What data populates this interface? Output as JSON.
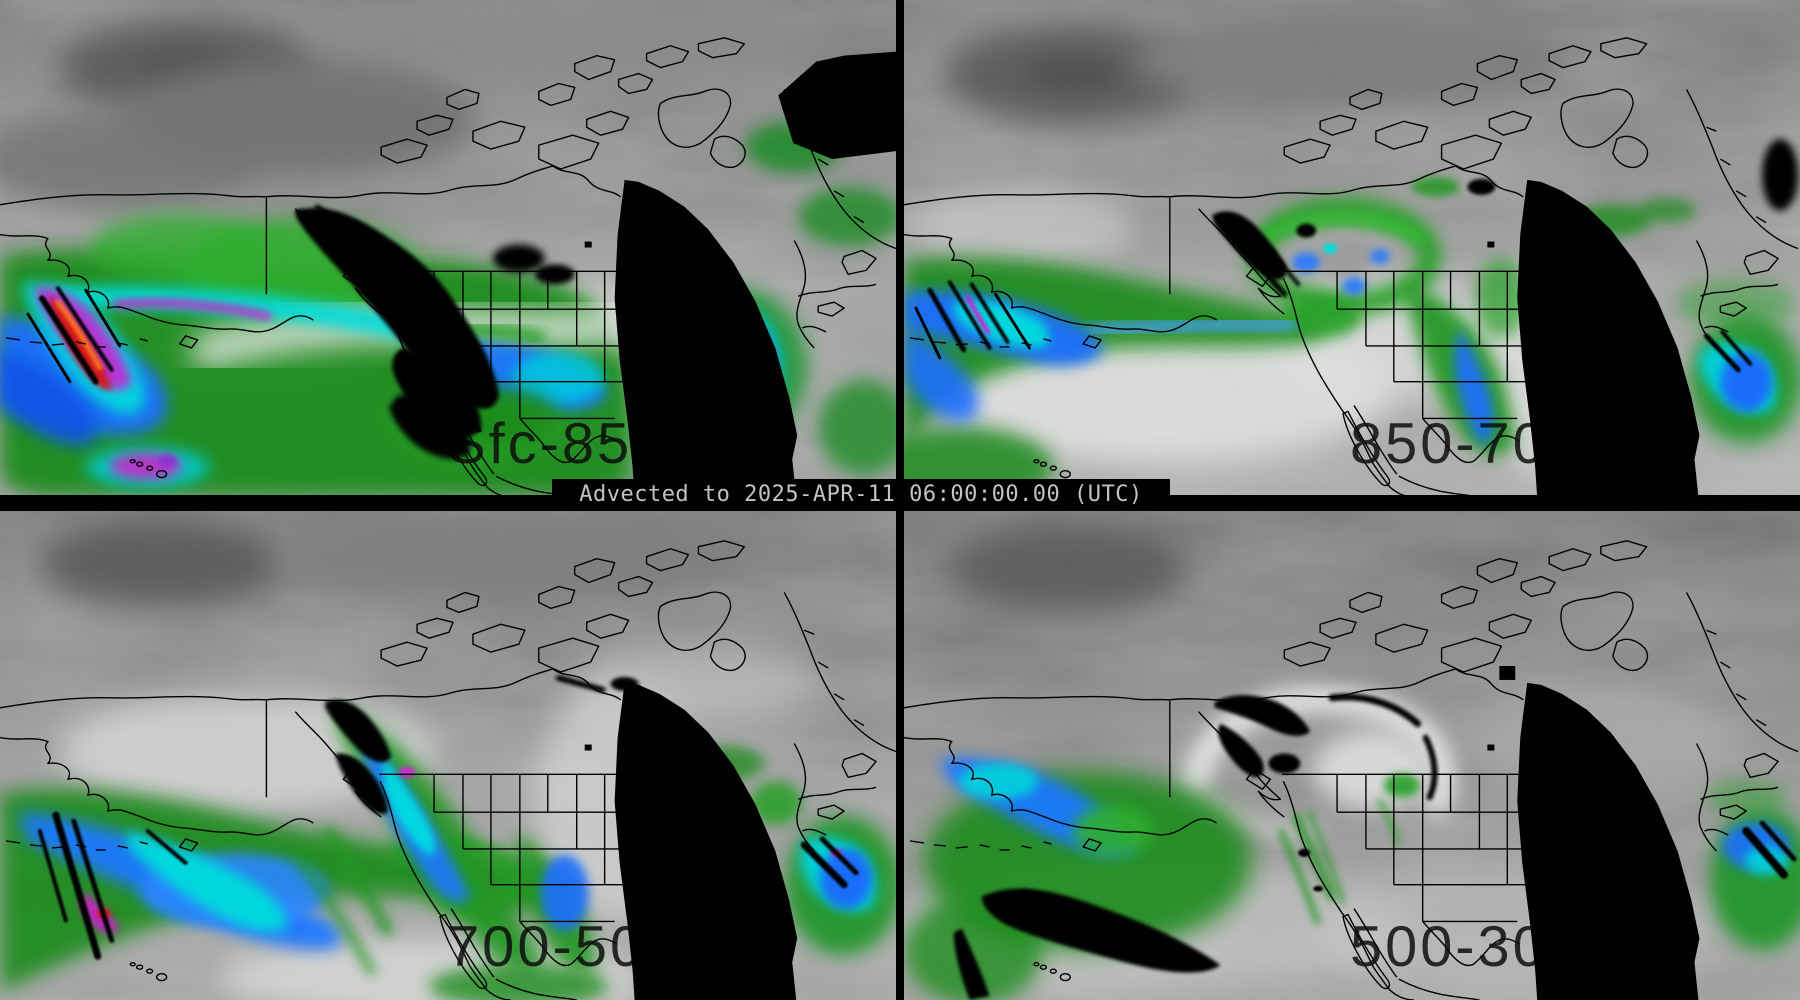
{
  "header": {
    "advected_label": "Advected to 2025-APR-11 06:00:00.00 (UTC)"
  },
  "panels": [
    {
      "id": "top-left",
      "label": "Sfc-85"
    },
    {
      "id": "top-right",
      "label": "850-70"
    },
    {
      "id": "bottom-left",
      "label": "700-50"
    },
    {
      "id": "bottom-right",
      "label": "500-30"
    }
  ],
  "palette": {
    "background_black": "#000000",
    "imagery_gray_dark": "#6b6b6b",
    "imagery_gray_light": "#e6e6e6",
    "moisture_green": "#1e8c1e",
    "moisture_green_bright": "#2fae2f",
    "moisture_blue": "#1e6eff",
    "moisture_cyan": "#00dcdc",
    "moisture_purple": "#bd2fd4",
    "moisture_magenta": "#c623c6",
    "moisture_red": "#d41414",
    "moisture_orange": "#ff8414",
    "timestamp_text": "#c3c3c3",
    "label_text": "#0d0d0d"
  }
}
